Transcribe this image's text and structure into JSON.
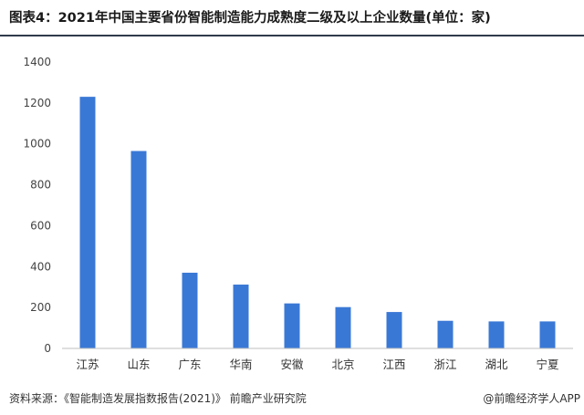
{
  "header": {
    "title": "图表4：2021年中国主要省份智能制造能力成熟度二级及以上企业数量(单位：家)"
  },
  "footer": {
    "source": "资料来源：《智能制造发展指数报告(2021)》 前瞻产业研究院",
    "publisher": "@前瞻经济学人APP"
  },
  "chart_data": {
    "type": "bar",
    "title": "图表4：2021年中国主要省份智能制造能力成熟度二级及以上企业数量(单位：家)",
    "xlabel": "",
    "ylabel": "",
    "categories": [
      "江苏",
      "山东",
      "广东",
      "华南",
      "安徽",
      "北京",
      "江西",
      "浙江",
      "湖北",
      "宁夏"
    ],
    "values": [
      1230,
      965,
      370,
      312,
      220,
      202,
      178,
      135,
      132,
      132
    ],
    "ylim": [
      0,
      1400
    ],
    "yticks": [
      0,
      200,
      400,
      600,
      800,
      1000,
      1200,
      1400
    ],
    "bar_color": "#3a78d6",
    "grid": false,
    "legend": "none"
  }
}
